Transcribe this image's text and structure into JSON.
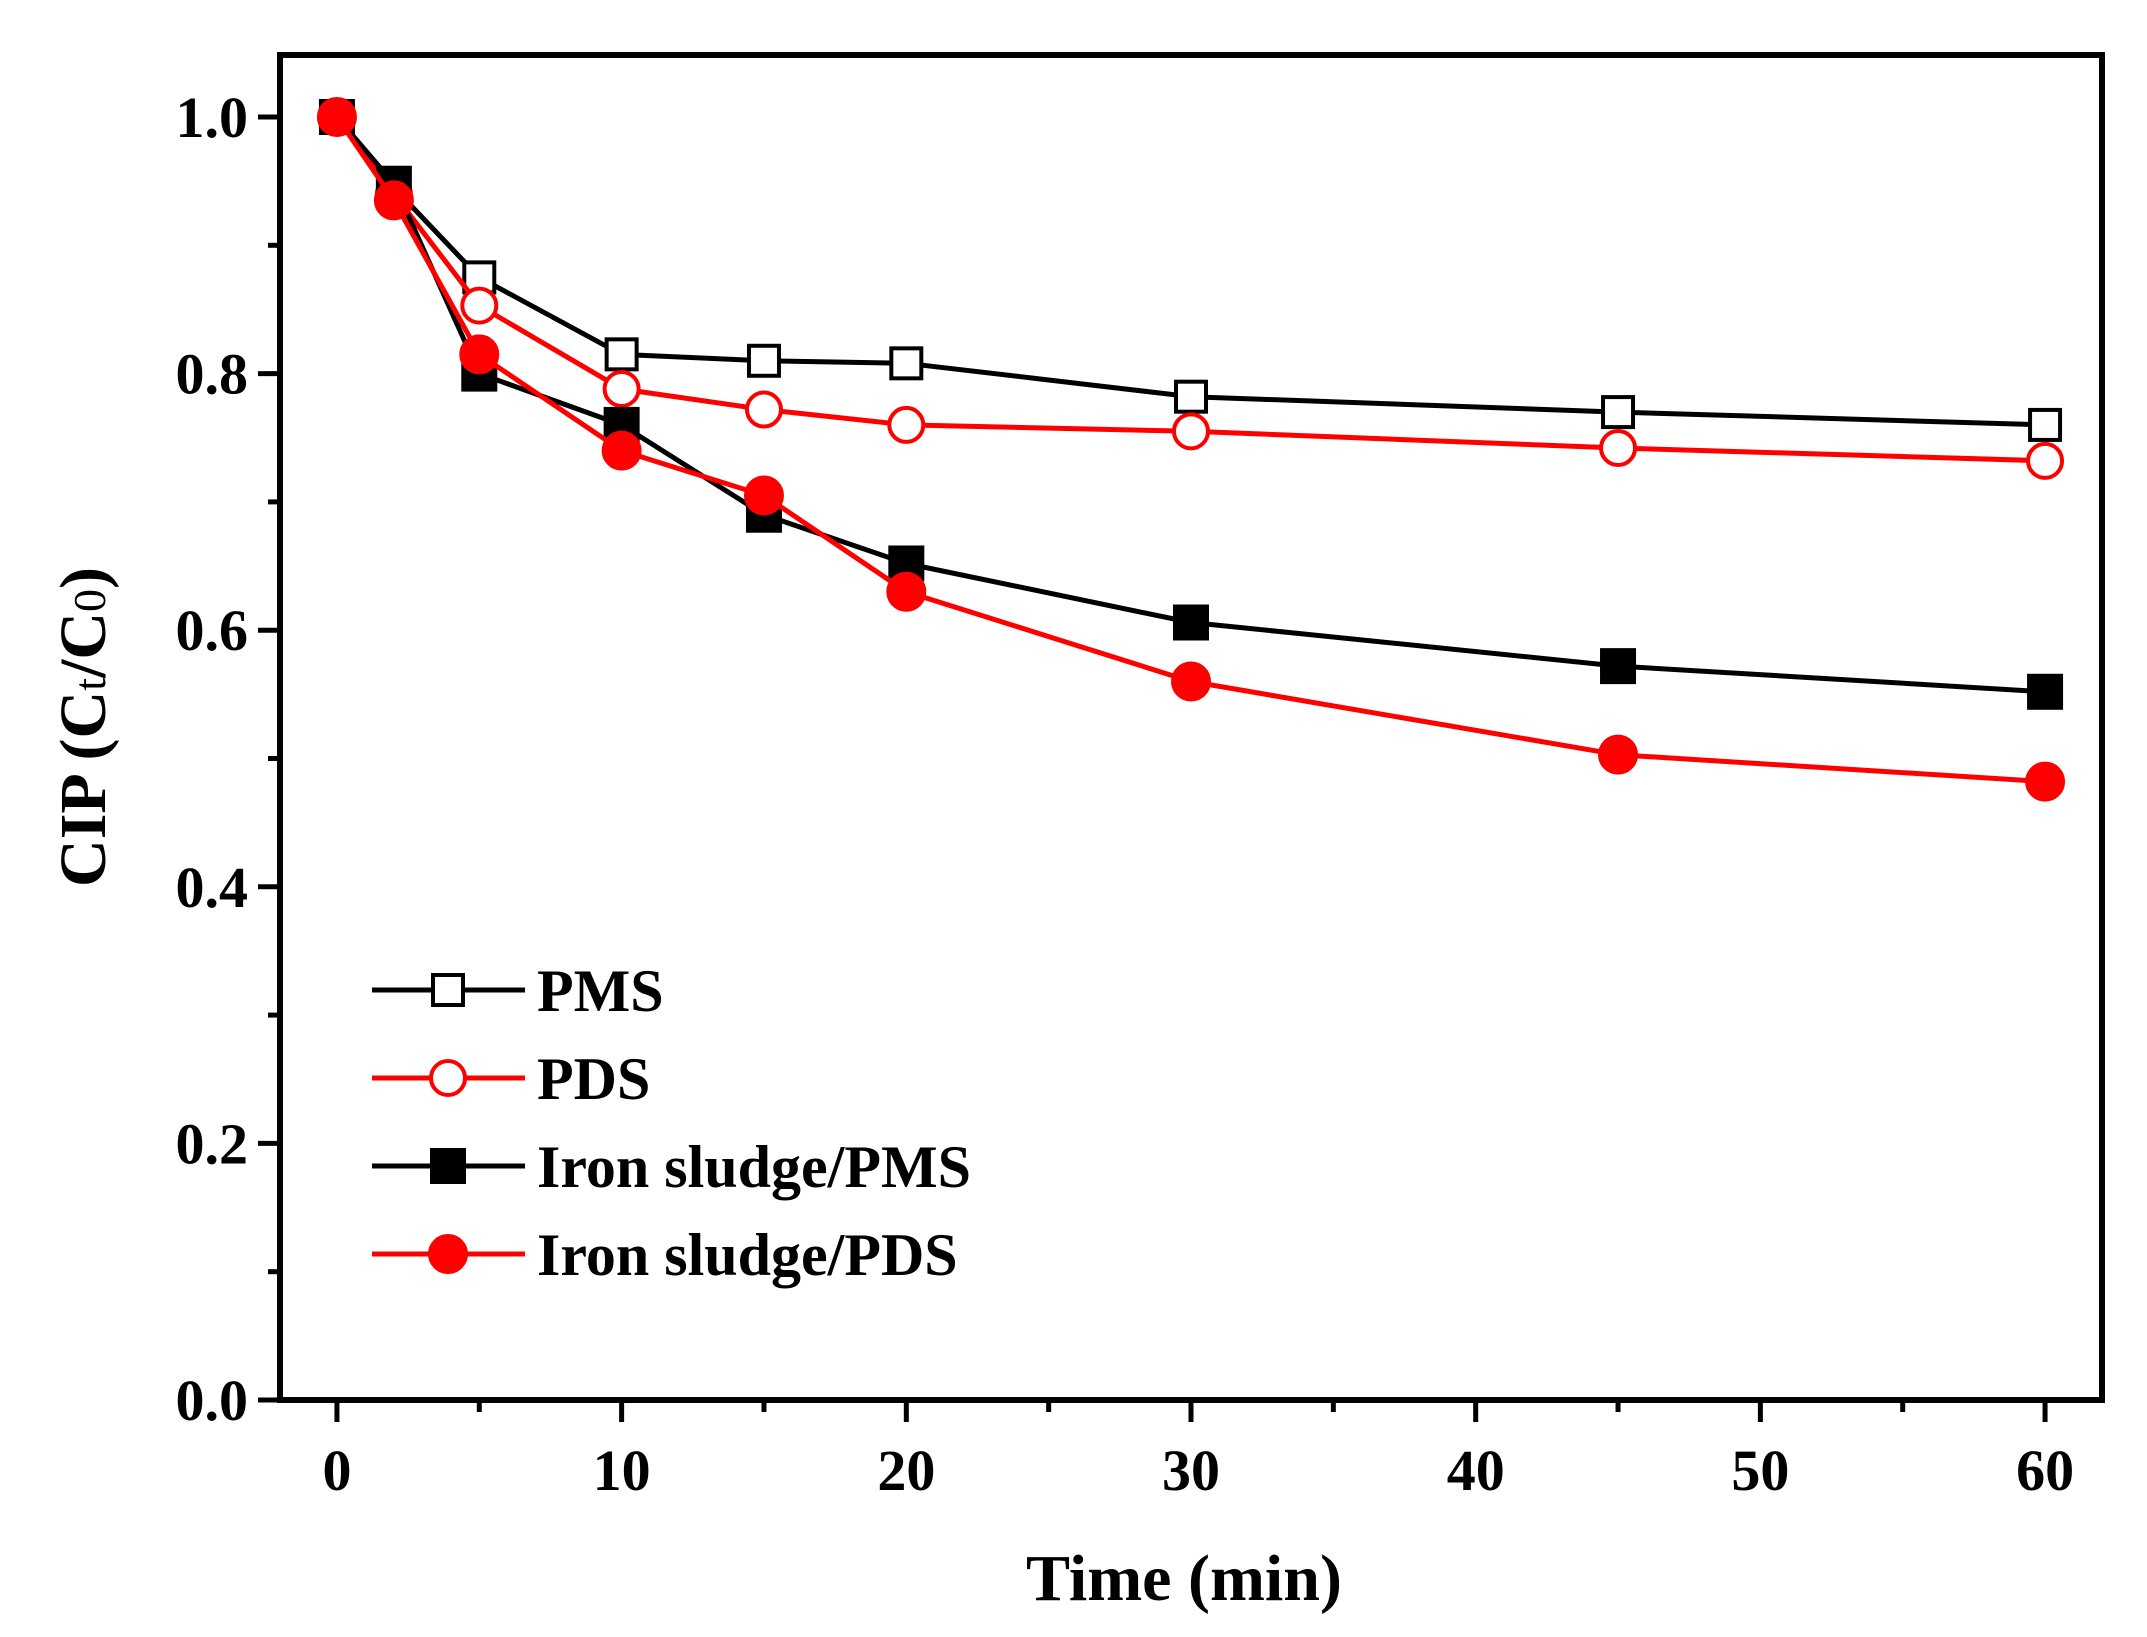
{
  "chart_data": {
    "type": "line",
    "title": "",
    "xlabel": "Time (min)",
    "ylabel": "CIP (Ct/C0)",
    "ylabel_parts": {
      "main": "CIP (C",
      "sub1": "t",
      "sep": "/C",
      "sub2": "0",
      "end": ")"
    },
    "xlim": [
      -2,
      62
    ],
    "ylim": [
      0.0,
      1.05
    ],
    "x_ticks": [
      0,
      10,
      20,
      30,
      40,
      50,
      60
    ],
    "x_tick_labels": [
      "0",
      "10",
      "20",
      "30",
      "40",
      "50",
      "60"
    ],
    "y_ticks": [
      0.0,
      0.2,
      0.4,
      0.6,
      0.8,
      1.0
    ],
    "y_tick_labels": [
      "0.0",
      "0.2",
      "0.4",
      "0.6",
      "0.8",
      "1.0"
    ],
    "grid": false,
    "legend_position": "lower-left",
    "x": [
      0,
      2,
      5,
      10,
      15,
      20,
      30,
      45,
      60
    ],
    "series": [
      {
        "name": "PMS",
        "color": "#000000",
        "marker": "square-open",
        "values": [
          1.0,
          0.945,
          0.875,
          0.815,
          0.81,
          0.808,
          0.782,
          0.77,
          0.76
        ]
      },
      {
        "name": "PDS",
        "color": "#ff0000",
        "marker": "circle-open",
        "values": [
          1.0,
          0.94,
          0.853,
          0.788,
          0.772,
          0.76,
          0.755,
          0.742,
          0.732
        ]
      },
      {
        "name": "Iron sludge/PMS",
        "color": "#000000",
        "marker": "square-filled",
        "values": [
          1.0,
          0.948,
          0.8,
          0.76,
          0.69,
          0.652,
          0.606,
          0.572,
          0.552
        ]
      },
      {
        "name": "Iron sludge/PDS",
        "color": "#ff0000",
        "marker": "circle-filled",
        "values": [
          1.0,
          0.935,
          0.815,
          0.74,
          0.705,
          0.63,
          0.56,
          0.503,
          0.482
        ]
      }
    ]
  }
}
